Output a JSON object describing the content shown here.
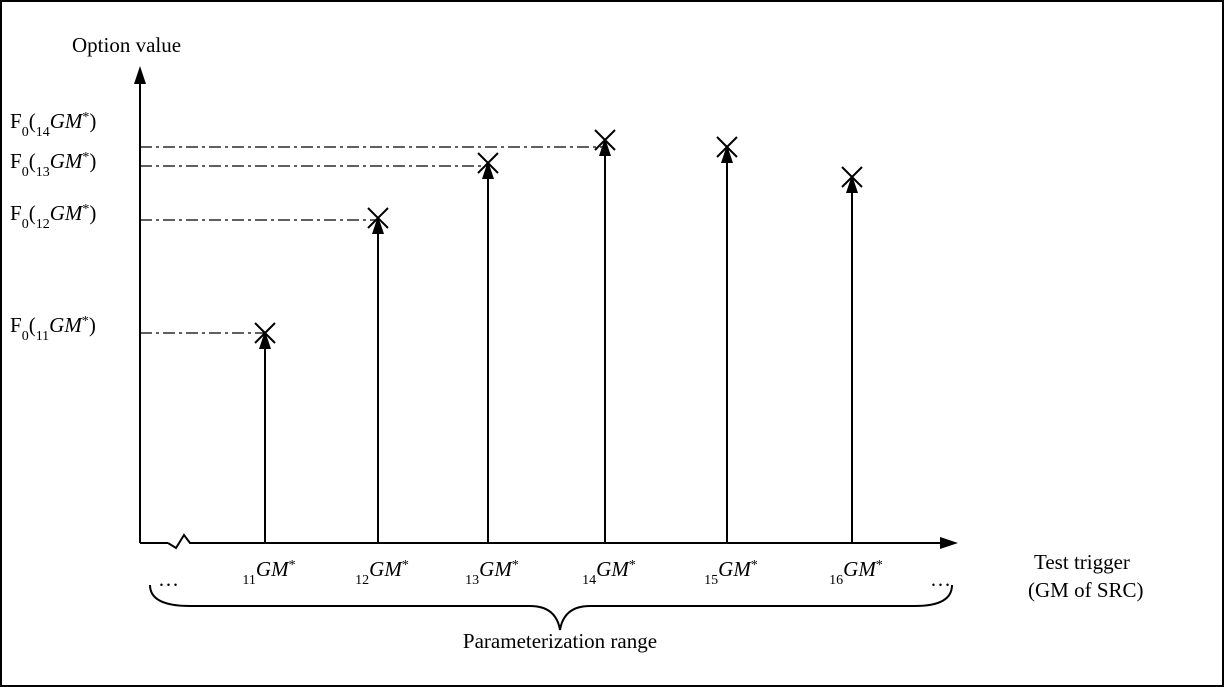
{
  "axis_labels": {
    "y": "Option value",
    "x": [
      "Test trigger",
      "(GM of SRC)"
    ]
  },
  "y_labels": [
    [
      {
        "t": "F"
      },
      {
        "t": "0",
        "sub": true
      },
      {
        "t": "("
      },
      {
        "t": "14",
        "sub": true
      },
      {
        "t": "GM",
        "italic": true
      },
      {
        "t": "*",
        "sup": true
      },
      {
        "t": ")"
      }
    ],
    [
      {
        "t": "F"
      },
      {
        "t": "0",
        "sub": true
      },
      {
        "t": "("
      },
      {
        "t": "13",
        "sub": true
      },
      {
        "t": "GM",
        "italic": true
      },
      {
        "t": "*",
        "sup": true
      },
      {
        "t": ")"
      }
    ],
    [
      {
        "t": "F"
      },
      {
        "t": "0",
        "sub": true
      },
      {
        "t": "("
      },
      {
        "t": "12",
        "sub": true
      },
      {
        "t": "GM",
        "italic": true
      },
      {
        "t": "*",
        "sup": true
      },
      {
        "t": ")"
      }
    ],
    [
      {
        "t": "F"
      },
      {
        "t": "0",
        "sub": true
      },
      {
        "t": "("
      },
      {
        "t": "11",
        "sub": true
      },
      {
        "t": "GM",
        "italic": true
      },
      {
        "t": "*",
        "sup": true
      },
      {
        "t": ")"
      }
    ]
  ],
  "x_labels": [
    [
      {
        "t": "11",
        "sub": true
      },
      {
        "t": "GM",
        "italic": true
      },
      {
        "t": "*",
        "sup": true
      }
    ],
    [
      {
        "t": "12",
        "sub": true
      },
      {
        "t": "GM",
        "italic": true
      },
      {
        "t": "*",
        "sup": true
      }
    ],
    [
      {
        "t": "13",
        "sub": true
      },
      {
        "t": "GM",
        "italic": true
      },
      {
        "t": "*",
        "sup": true
      }
    ],
    [
      {
        "t": "14",
        "sub": true
      },
      {
        "t": "GM",
        "italic": true
      },
      {
        "t": "*",
        "sup": true
      }
    ],
    [
      {
        "t": "15",
        "sub": true
      },
      {
        "t": "GM",
        "italic": true
      },
      {
        "t": "*",
        "sup": true
      }
    ],
    [
      {
        "t": "16",
        "sub": true
      },
      {
        "t": "GM",
        "italic": true
      },
      {
        "t": "*",
        "sup": true
      }
    ]
  ],
  "ellipsis": [
    "…",
    "…"
  ],
  "range_label": "Parameterization range"
}
